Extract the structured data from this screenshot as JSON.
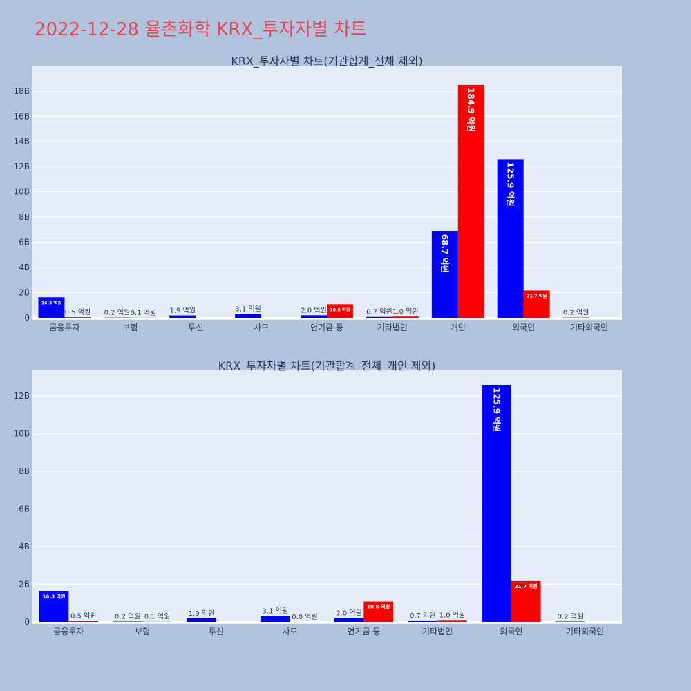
{
  "page_title": "2022-12-28 율촌화학 KRX_투자자별 차트",
  "colors": {
    "page_bg": "#b0c4de",
    "plot_bg": "#e5ecf6",
    "buy": "#0000ff",
    "sell": "#ff0000",
    "title": "#e8475a"
  },
  "chart_data": [
    {
      "type": "bar",
      "title": "KRX_투자자별 차트(기관합계_전체 제외)",
      "categories": [
        "금융투자",
        "보험",
        "투신",
        "사모",
        "연기금 등",
        "기타법인",
        "개인",
        "외국인",
        "기타외국인"
      ],
      "y_ticks": [
        "0",
        "2B",
        "4B",
        "6B",
        "8B",
        "10B",
        "12B",
        "14B",
        "16B",
        "18B"
      ],
      "ylim": [
        0,
        19800000000
      ],
      "grid": true,
      "series": [
        {
          "color": "#0000ff",
          "values": [
            1630000000,
            20000000,
            190000000,
            310000000,
            200000000,
            70000000,
            6870000000,
            12590000000,
            20000000
          ],
          "labels": [
            "16.3 억원",
            "0.2 억원",
            "1.9 억원",
            "3.1 억원",
            "2.0 억원",
            "0.7 억원",
            "68.7 억원",
            "125.9 억원",
            "0.2 억원"
          ]
        },
        {
          "color": "#ff0000",
          "values": [
            50000000,
            10000000,
            null,
            null,
            1080000000,
            100000000,
            18490000000,
            2170000000,
            null
          ],
          "labels": [
            "0.5 억원",
            "0.1 억원",
            null,
            null,
            "10.8 억원",
            "1.0 억원",
            "184.9 억원",
            "21.7 억원",
            null
          ]
        }
      ]
    },
    {
      "type": "bar",
      "title": "KRX_투자자별 차트(기관합계_전체_개인 제외)",
      "categories": [
        "금융투자",
        "보험",
        "투신",
        "사모",
        "연기금 등",
        "기타법인",
        "외국인",
        "기타외국인"
      ],
      "y_ticks": [
        "0",
        "2B",
        "4B",
        "6B",
        "8B",
        "10B",
        "12B"
      ],
      "ylim": [
        0,
        13250000000
      ],
      "grid": true,
      "series": [
        {
          "color": "#0000ff",
          "values": [
            1630000000,
            20000000,
            190000000,
            310000000,
            200000000,
            70000000,
            12590000000,
            20000000
          ],
          "labels": [
            "16.3 억원",
            "0.2 억원",
            "1.9 억원",
            "3.1 억원",
            "2.0 억원",
            "0.7 억원",
            "125.9 억원",
            "0.2 억원"
          ]
        },
        {
          "color": "#ff0000",
          "values": [
            50000000,
            10000000,
            null,
            0,
            1080000000,
            100000000,
            2170000000,
            null
          ],
          "labels": [
            "0.5 억원",
            "0.1 억원",
            null,
            "0.0 억원",
            "10.8 억원",
            "1.0 억원",
            "21.7 억원",
            null
          ]
        }
      ]
    }
  ]
}
